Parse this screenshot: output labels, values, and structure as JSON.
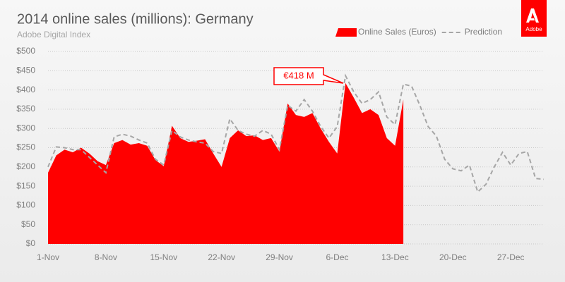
{
  "chart_data": {
    "type": "area_line",
    "title": "2014 online sales (millions): Germany",
    "subtitle": "Adobe Digital Index",
    "logo": "Adobe",
    "annotation": "€418 M",
    "categories": [
      "1-Nov",
      null,
      null,
      null,
      null,
      null,
      null,
      "8-Nov",
      null,
      null,
      null,
      null,
      null,
      null,
      "15-Nov",
      null,
      null,
      null,
      null,
      null,
      null,
      "22-Nov",
      null,
      null,
      null,
      null,
      null,
      null,
      "29-Nov",
      null,
      null,
      null,
      null,
      null,
      null,
      "6-Dec",
      null,
      null,
      null,
      null,
      null,
      null,
      "13-Dec",
      null,
      null,
      null,
      null,
      null,
      null,
      "20-Dec",
      null,
      null,
      null,
      null,
      null,
      null,
      "27-Dec",
      null,
      null,
      null,
      null
    ],
    "series": [
      {
        "name": "Online Sales (Euros)",
        "color": "#ff0000",
        "style": "area",
        "values": [
          185,
          230,
          245,
          238,
          250,
          235,
          215,
          205,
          262,
          270,
          258,
          262,
          255,
          218,
          202,
          307,
          275,
          265,
          268,
          272,
          235,
          200,
          275,
          295,
          280,
          282,
          270,
          275,
          240,
          365,
          335,
          330,
          340,
          300,
          265,
          235,
          418,
          380,
          340,
          350,
          335,
          275,
          255,
          375,
          null,
          null,
          null,
          null,
          null,
          null,
          null,
          null,
          null,
          null,
          null,
          null,
          null,
          null,
          null,
          null,
          null
        ]
      },
      {
        "name": "Prediction",
        "color": "#a6a6a6",
        "style": "dashed",
        "values": [
          200,
          252,
          250,
          245,
          245,
          225,
          205,
          185,
          278,
          285,
          280,
          270,
          262,
          220,
          205,
          295,
          278,
          270,
          265,
          262,
          240,
          235,
          325,
          295,
          285,
          280,
          295,
          285,
          245,
          360,
          345,
          375,
          345,
          305,
          275,
          305,
          437,
          395,
          365,
          375,
          395,
          330,
          310,
          415,
          410,
          360,
          305,
          280,
          220,
          195,
          190,
          205,
          135,
          155,
          200,
          238,
          205,
          235,
          240,
          170,
          168
        ]
      }
    ],
    "ylim": [
      0,
      500
    ],
    "yticks": [
      {
        "value": 0,
        "label": "$0"
      },
      {
        "value": 50,
        "label": "$50"
      },
      {
        "value": 100,
        "label": "$100"
      },
      {
        "value": 150,
        "label": "$150"
      },
      {
        "value": 200,
        "label": "$200"
      },
      {
        "value": 250,
        "label": "$250"
      },
      {
        "value": 300,
        "label": "$300"
      },
      {
        "value": 350,
        "label": "$350"
      },
      {
        "value": 400,
        "label": "$400"
      },
      {
        "value": 450,
        "label": "$450"
      },
      {
        "value": 500,
        "label": "$500"
      }
    ],
    "grid": true,
    "legend": "top-right"
  }
}
